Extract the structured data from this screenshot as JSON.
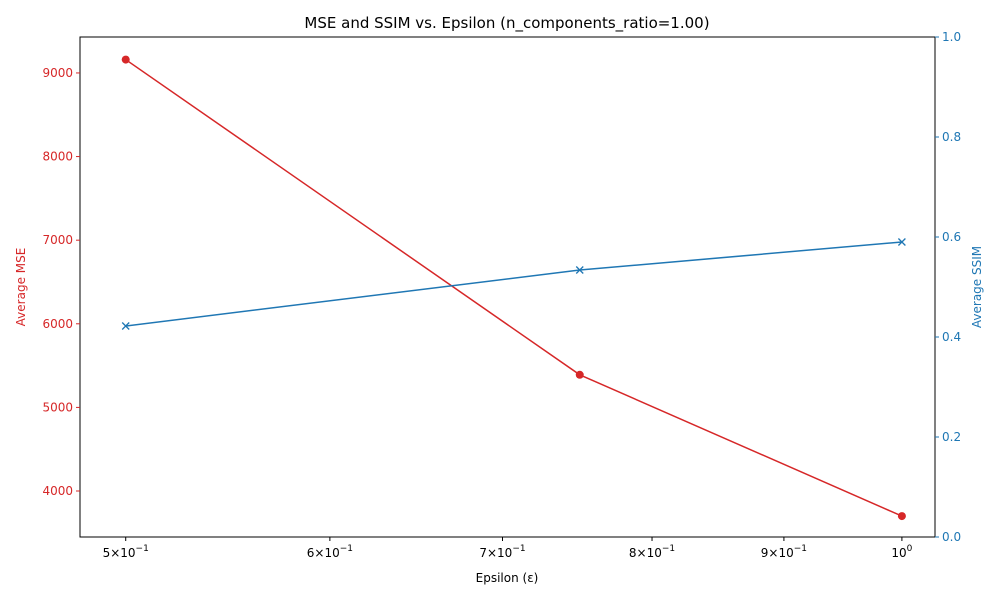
{
  "chart_data": {
    "type": "line",
    "title": "MSE and SSIM vs. Epsilon (n_components_ratio=1.00)",
    "xlabel": "Epsilon (ε)",
    "x_scale": "log",
    "xlim": [
      0.48,
      1.03
    ],
    "x_ticks": [
      {
        "value": 0.5,
        "base": "5",
        "rest": "×10",
        "exp": "−1"
      },
      {
        "value": 0.6,
        "base": "6",
        "rest": "×10",
        "exp": "−1"
      },
      {
        "value": 0.7,
        "base": "7",
        "rest": "×10",
        "exp": "−1"
      },
      {
        "value": 0.8,
        "base": "8",
        "rest": "×10",
        "exp": "−1"
      },
      {
        "value": 0.9,
        "base": "9",
        "rest": "×10",
        "exp": "−1"
      },
      {
        "value": 1.0,
        "base": "10",
        "rest": "",
        "exp": "0"
      }
    ],
    "x": [
      0.5,
      0.75,
      1.0
    ],
    "left_axis": {
      "label": "Average MSE",
      "color": "#d62728",
      "ylim": [
        3450,
        9430
      ],
      "ticks": [
        "4000",
        "5000",
        "6000",
        "7000",
        "8000",
        "9000"
      ]
    },
    "right_axis": {
      "label": "Average SSIM",
      "color": "#1f77b4",
      "ylim": [
        0.0,
        1.0
      ],
      "ticks": [
        "0.0",
        "0.2",
        "0.4",
        "0.6",
        "0.8",
        "1.0"
      ]
    },
    "series": [
      {
        "axis": "left",
        "marker": "circle",
        "color": "#d62728",
        "values": [
          9160,
          5390,
          3700
        ]
      },
      {
        "axis": "right",
        "marker": "x",
        "color": "#1f77b4",
        "values": [
          0.422,
          0.534,
          0.59
        ]
      }
    ],
    "grid": false,
    "legend": "none"
  }
}
